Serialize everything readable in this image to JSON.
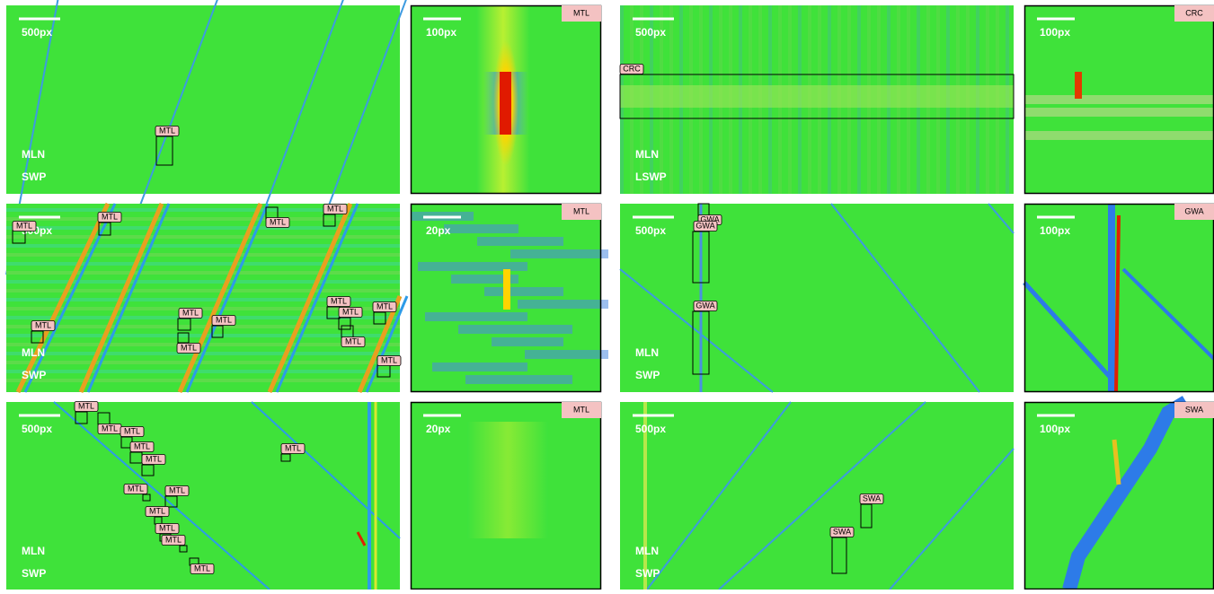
{
  "rows": [
    {
      "panels": [
        {
          "scale": "500px",
          "labels": [
            "MLN",
            "SWP"
          ],
          "boxes": [
            "MTL"
          ]
        },
        {
          "scale": "100px",
          "tag": "MTL"
        },
        {
          "scale": "500px",
          "labels": [
            "MLN",
            "LSWP"
          ],
          "boxes": [
            "CRC"
          ]
        },
        {
          "scale": "100px",
          "tag": "CRC"
        }
      ]
    },
    {
      "panels": [
        {
          "scale": "500px",
          "labels": [
            "MLN",
            "SWP"
          ],
          "boxes": [
            "MTL",
            "MTL",
            "MTL",
            "MTL",
            "MTL",
            "MTL",
            "MTL",
            "MTL",
            "MTL",
            "MTL",
            "MTL",
            "MTL",
            "MTL"
          ]
        },
        {
          "scale": "20px",
          "tag": "MTL"
        },
        {
          "scale": "500px",
          "labels": [
            "MLN",
            "SWP"
          ],
          "boxes": [
            "GWA",
            "GWA",
            "GWA"
          ]
        },
        {
          "scale": "100px",
          "tag": "GWA"
        }
      ]
    },
    {
      "panels": [
        {
          "scale": "500px",
          "labels": [
            "MLN",
            "SWP"
          ],
          "boxes": [
            "MTL",
            "MTL",
            "MTL",
            "MTL",
            "MTL",
            "MTL",
            "MTL",
            "MTL",
            "MTL",
            "MTL",
            "MTL",
            "MTL"
          ]
        },
        {
          "scale": "20px",
          "tag": "MTL"
        },
        {
          "scale": "500px",
          "labels": [
            "MLN",
            "SWP"
          ],
          "boxes": [
            "SWA",
            "SWA"
          ]
        },
        {
          "scale": "100px",
          "tag": "SWA"
        }
      ]
    }
  ]
}
